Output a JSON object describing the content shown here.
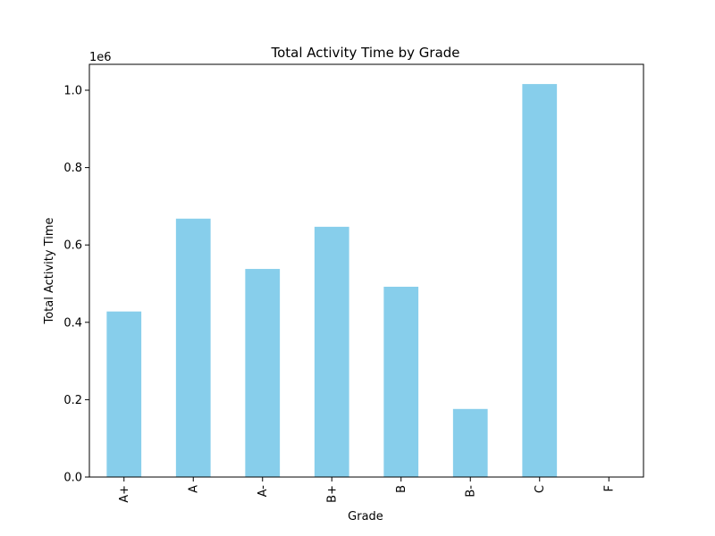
{
  "chart_data": {
    "type": "bar",
    "title": "Total Activity Time by Grade",
    "xlabel": "Grade",
    "ylabel": "Total Activity Time",
    "y_offset_label": "1e6",
    "categories": [
      "A+",
      "A",
      "A-",
      "B+",
      "B",
      "B-",
      "C",
      "F"
    ],
    "values": [
      428000,
      668000,
      538000,
      647000,
      492000,
      176000,
      1016000,
      0
    ],
    "ylim": [
      0,
      1067000
    ],
    "yticks": [
      0.0,
      200000,
      400000,
      600000,
      800000,
      1000000
    ],
    "ytick_labels": [
      "0.0",
      "0.2",
      "0.4",
      "0.6",
      "0.8",
      "1.0"
    ],
    "bar_color": "#87ceeb",
    "grid": false,
    "legend": false
  }
}
